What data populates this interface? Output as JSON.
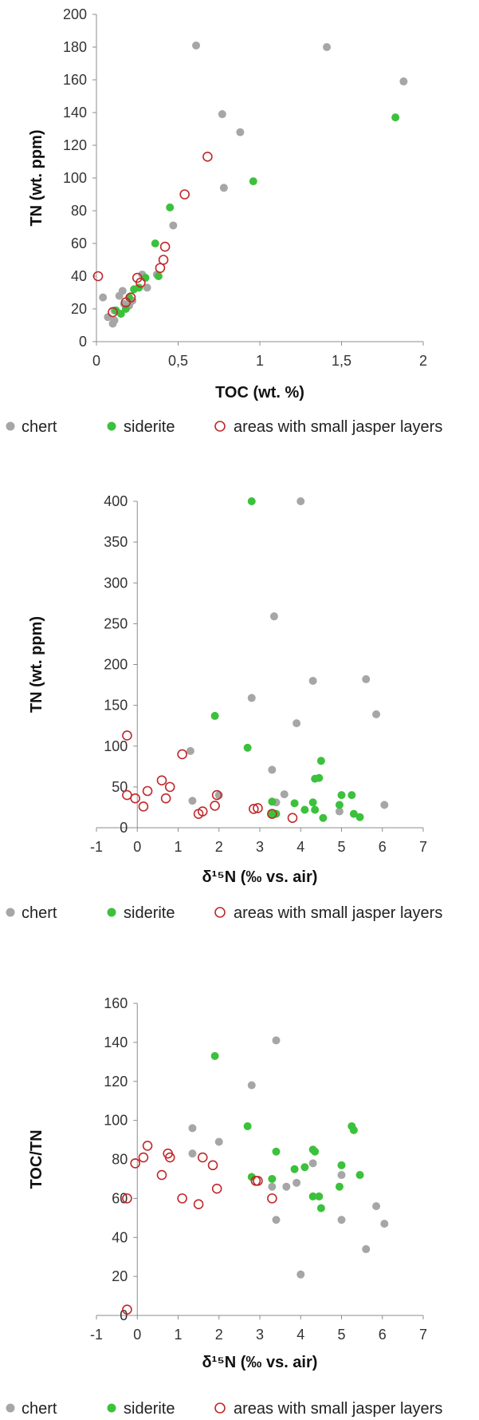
{
  "colors": {
    "chert": "#a6a6a6",
    "siderite": "#3cc13c",
    "jasper": "#c0282b"
  },
  "legend": {
    "chert": "chert",
    "siderite": "siderite",
    "jasper": "areas with small jasper layers"
  },
  "chart_data": [
    {
      "type": "scatter",
      "title": "",
      "xlabel": "TOC (wt. %)",
      "ylabel": "TN (wt. ppm)",
      "xlim": [
        0,
        2
      ],
      "ylim": [
        0,
        200
      ],
      "xticks": [
        "0",
        "0,5",
        "1",
        "1,5",
        "2"
      ],
      "yticks": [
        "0",
        "20",
        "40",
        "60",
        "80",
        "100",
        "120",
        "140",
        "160",
        "180",
        "200"
      ],
      "legend_position": "bottom",
      "series": [
        {
          "name": "chert",
          "marker": "filled-circle",
          "color": "#a6a6a6",
          "points": [
            [
              0.04,
              27
            ],
            [
              0.07,
              15
            ],
            [
              0.1,
              11
            ],
            [
              0.11,
              13
            ],
            [
              0.11,
              19
            ],
            [
              0.14,
              28
            ],
            [
              0.16,
              31
            ],
            [
              0.17,
              23
            ],
            [
              0.2,
              22
            ],
            [
              0.22,
              25
            ],
            [
              0.28,
              41
            ],
            [
              0.31,
              33
            ],
            [
              0.37,
              41
            ],
            [
              0.47,
              71
            ],
            [
              0.61,
              181
            ],
            [
              0.77,
              139
            ],
            [
              0.78,
              94
            ],
            [
              0.88,
              128
            ],
            [
              1.41,
              180
            ],
            [
              1.88,
              159
            ]
          ]
        },
        {
          "name": "siderite",
          "marker": "filled-circle",
          "color": "#3cc13c",
          "points": [
            [
              0.12,
              19
            ],
            [
              0.15,
              17
            ],
            [
              0.18,
              20
            ],
            [
              0.2,
              27
            ],
            [
              0.23,
              32
            ],
            [
              0.26,
              33
            ],
            [
              0.3,
              39
            ],
            [
              0.36,
              60
            ],
            [
              0.38,
              40
            ],
            [
              0.45,
              82
            ],
            [
              0.96,
              98
            ],
            [
              1.83,
              137
            ]
          ]
        },
        {
          "name": "areas with small jasper layers",
          "marker": "ring",
          "color": "#c0282b",
          "points": [
            [
              0.01,
              40
            ],
            [
              0.1,
              18
            ],
            [
              0.18,
              24
            ],
            [
              0.21,
              27
            ],
            [
              0.25,
              39
            ],
            [
              0.27,
              36
            ],
            [
              0.39,
              45
            ],
            [
              0.41,
              50
            ],
            [
              0.42,
              58
            ],
            [
              0.54,
              90
            ],
            [
              0.68,
              113
            ]
          ]
        }
      ]
    },
    {
      "type": "scatter",
      "title": "",
      "xlabel": "δ¹⁵N (‰ vs. air)",
      "ylabel": "TN (wt. ppm)",
      "xlim": [
        -1,
        7
      ],
      "ylim": [
        0,
        400
      ],
      "xticks": [
        "-1",
        "0",
        "1",
        "2",
        "3",
        "4",
        "5",
        "6",
        "7"
      ],
      "yticks": [
        "0",
        "50",
        "100",
        "150",
        "200",
        "250",
        "300",
        "350",
        "400"
      ],
      "legend_position": "bottom",
      "series": [
        {
          "name": "chert",
          "marker": "filled-circle",
          "color": "#a6a6a6",
          "points": [
            [
              1.3,
              94
            ],
            [
              1.35,
              33
            ],
            [
              2.0,
              40
            ],
            [
              2.8,
              159
            ],
            [
              3.3,
              71
            ],
            [
              3.35,
              259
            ],
            [
              3.4,
              31
            ],
            [
              3.6,
              41
            ],
            [
              3.9,
              128
            ],
            [
              4.0,
              400
            ],
            [
              4.3,
              180
            ],
            [
              4.95,
              20
            ],
            [
              5.6,
              182
            ],
            [
              5.85,
              139
            ],
            [
              6.05,
              28
            ]
          ]
        },
        {
          "name": "siderite",
          "marker": "filled-circle",
          "color": "#3cc13c",
          "points": [
            [
              1.9,
              137
            ],
            [
              2.7,
              98
            ],
            [
              2.8,
              400
            ],
            [
              3.3,
              32
            ],
            [
              3.4,
              17
            ],
            [
              3.85,
              30
            ],
            [
              4.1,
              22
            ],
            [
              4.3,
              31
            ],
            [
              4.35,
              60
            ],
            [
              4.45,
              61
            ],
            [
              4.5,
              82
            ],
            [
              4.55,
              12
            ],
            [
              4.95,
              28
            ],
            [
              5.0,
              40
            ],
            [
              5.25,
              40
            ],
            [
              5.3,
              17
            ],
            [
              5.45,
              13
            ],
            [
              4.35,
              22
            ],
            [
              3.3,
              17
            ]
          ]
        },
        {
          "name": "areas with small jasper layers",
          "marker": "ring",
          "color": "#c0282b",
          "points": [
            [
              -0.25,
              113
            ],
            [
              -0.25,
              40
            ],
            [
              -0.05,
              36
            ],
            [
              0.15,
              26
            ],
            [
              0.25,
              45
            ],
            [
              0.6,
              58
            ],
            [
              0.7,
              36
            ],
            [
              0.8,
              50
            ],
            [
              1.1,
              90
            ],
            [
              1.5,
              17
            ],
            [
              1.6,
              20
            ],
            [
              1.9,
              27
            ],
            [
              1.95,
              40
            ],
            [
              2.85,
              23
            ],
            [
              2.95,
              24
            ],
            [
              3.3,
              17
            ],
            [
              3.8,
              12
            ]
          ]
        }
      ]
    },
    {
      "type": "scatter",
      "title": "",
      "xlabel": "δ¹⁵N (‰ vs. air)",
      "ylabel": "TOC/TN",
      "xlim": [
        -1,
        7
      ],
      "ylim": [
        0,
        160
      ],
      "xticks": [
        "-1",
        "0",
        "1",
        "2",
        "3",
        "4",
        "5",
        "6",
        "7"
      ],
      "yticks": [
        "0",
        "20",
        "40",
        "60",
        "80",
        "100",
        "120",
        "140",
        "160"
      ],
      "legend_position": "bottom",
      "series": [
        {
          "name": "chert",
          "marker": "filled-circle",
          "color": "#a6a6a6",
          "points": [
            [
              1.35,
              96
            ],
            [
              1.35,
              83
            ],
            [
              2.0,
              89
            ],
            [
              2.8,
              118
            ],
            [
              3.3,
              66
            ],
            [
              3.4,
              141
            ],
            [
              3.4,
              49
            ],
            [
              3.65,
              66
            ],
            [
              3.9,
              68
            ],
            [
              4.0,
              21
            ],
            [
              4.3,
              78
            ],
            [
              5.0,
              72
            ],
            [
              5.0,
              49
            ],
            [
              5.6,
              34
            ],
            [
              5.85,
              56
            ],
            [
              6.05,
              47
            ]
          ]
        },
        {
          "name": "siderite",
          "marker": "filled-circle",
          "color": "#3cc13c",
          "points": [
            [
              1.9,
              133
            ],
            [
              2.7,
              97
            ],
            [
              2.8,
              71
            ],
            [
              3.3,
              70
            ],
            [
              3.4,
              84
            ],
            [
              3.85,
              75
            ],
            [
              4.1,
              76
            ],
            [
              4.3,
              85
            ],
            [
              4.35,
              84
            ],
            [
              4.3,
              61
            ],
            [
              4.45,
              61
            ],
            [
              4.5,
              55
            ],
            [
              4.95,
              66
            ],
            [
              5.0,
              77
            ],
            [
              5.25,
              97
            ],
            [
              5.3,
              95
            ],
            [
              5.45,
              72
            ]
          ]
        },
        {
          "name": "areas with small jasper layers",
          "marker": "ring",
          "color": "#c0282b",
          "points": [
            [
              -0.25,
              60
            ],
            [
              -0.25,
              3
            ],
            [
              -0.05,
              78
            ],
            [
              0.15,
              81
            ],
            [
              0.25,
              87
            ],
            [
              0.6,
              72
            ],
            [
              0.75,
              83
            ],
            [
              0.8,
              81
            ],
            [
              1.1,
              60
            ],
            [
              1.5,
              57
            ],
            [
              1.6,
              81
            ],
            [
              1.85,
              77
            ],
            [
              1.95,
              65
            ],
            [
              2.9,
              69
            ],
            [
              2.95,
              69
            ],
            [
              3.3,
              60
            ]
          ]
        }
      ]
    }
  ]
}
